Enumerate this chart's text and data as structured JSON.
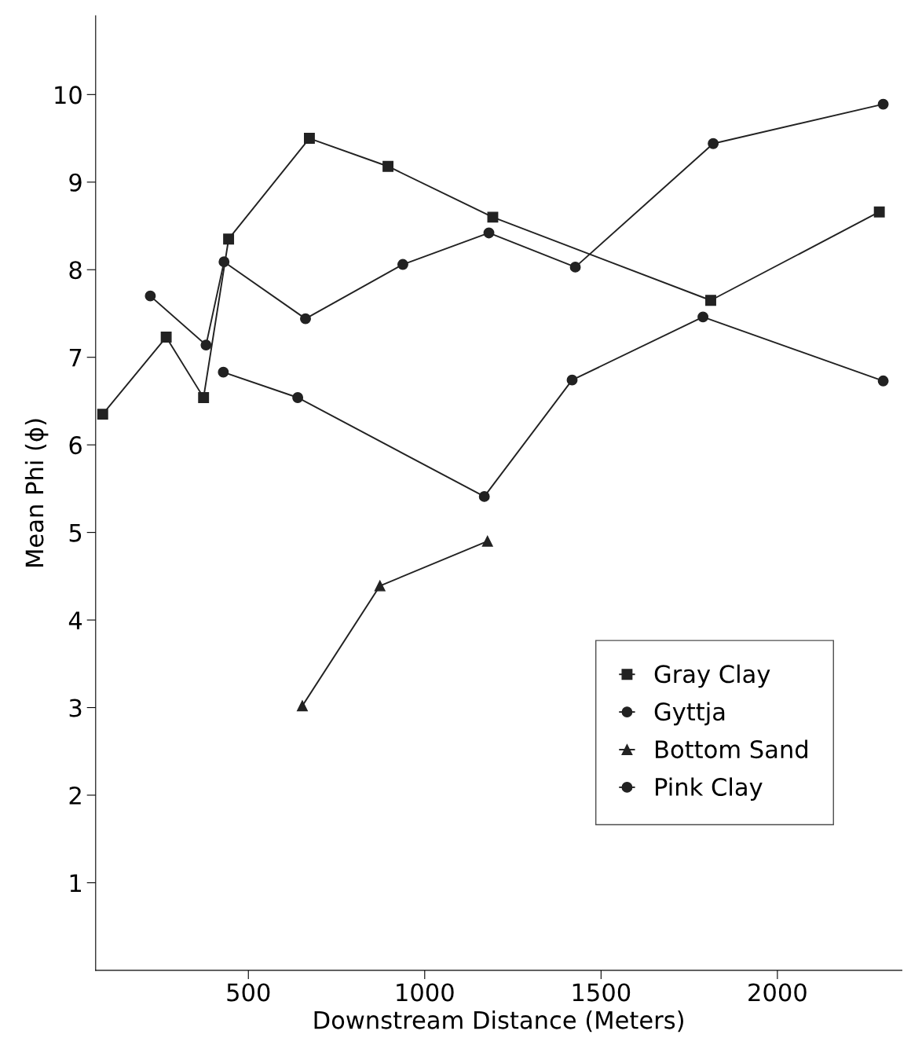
{
  "chart_data": {
    "type": "line",
    "xlabel": "Downstream Distance (Meters)",
    "ylabel": "Mean Phi (ϕ)",
    "xlim": [
      67,
      2353
    ],
    "ylim": [
      0,
      10.9
    ],
    "xticks": [
      500,
      1000,
      1500,
      2000
    ],
    "yticks": [
      1,
      2,
      3,
      4,
      5,
      6,
      7,
      8,
      9,
      10
    ],
    "grid": false,
    "legend": "bottom right",
    "line_style": "solid",
    "series": [
      {
        "name": "Gray Clay",
        "color": "#222222",
        "marker": "square",
        "x": [
          87,
          267,
          373,
          444,
          673,
          896,
          1193,
          1811,
          2289
        ],
        "values": [
          6.35,
          7.23,
          6.54,
          8.35,
          9.5,
          9.18,
          8.6,
          7.65,
          8.66
        ]
      },
      {
        "name": "Gyttja",
        "color": "#222222",
        "marker": "circle",
        "x": [
          222,
          380,
          431,
          662,
          938,
          1182,
          1427,
          1818,
          2300
        ],
        "values": [
          7.7,
          7.14,
          8.09,
          7.44,
          8.06,
          8.42,
          8.03,
          9.44,
          9.89
        ]
      },
      {
        "name": "Bottom Sand",
        "color": "#222222",
        "marker": "triangle",
        "x": [
          653,
          873,
          1178
        ],
        "values": [
          3.02,
          4.39,
          4.9
        ]
      },
      {
        "name": "Pink Clay",
        "color": "#222222",
        "marker": "circle",
        "x": [
          429,
          640,
          1169,
          1418,
          1789,
          2300
        ],
        "values": [
          6.83,
          6.54,
          5.41,
          6.74,
          7.46,
          6.73
        ]
      }
    ]
  }
}
